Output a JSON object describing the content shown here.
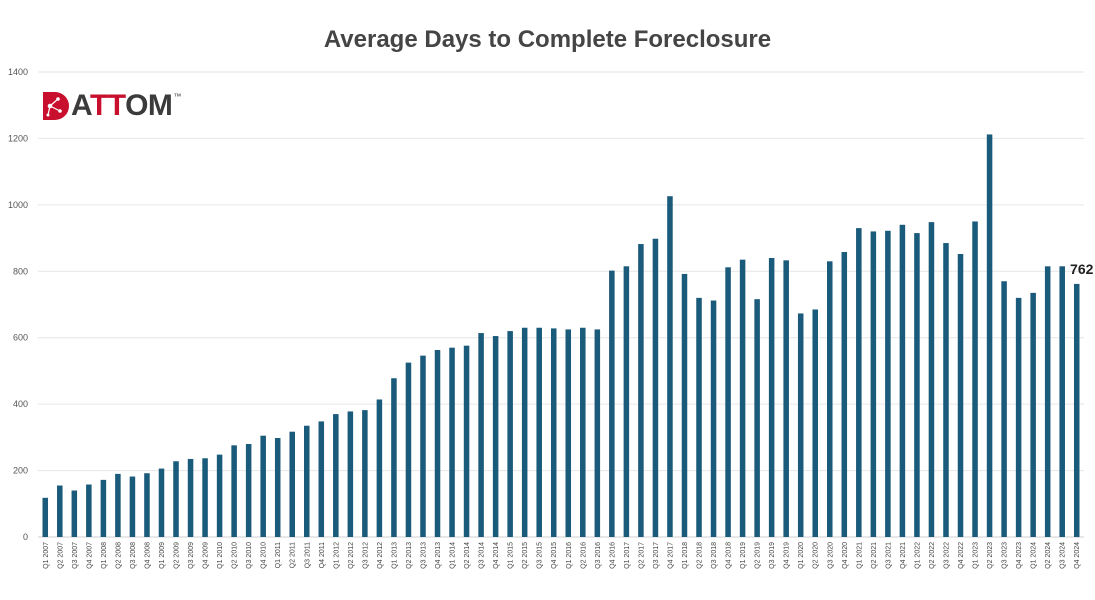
{
  "chart_data": {
    "type": "bar",
    "title": "Average Days to Complete Foreclosure",
    "xlabel": "",
    "ylabel": "",
    "ylim": [
      0,
      1400
    ],
    "yticks": [
      0,
      200,
      400,
      600,
      800,
      1000,
      1200,
      1400
    ],
    "grid": true,
    "bar_color": "#1a5a7a",
    "categories": [
      "Q1 2007",
      "Q2 2007",
      "Q3 2007",
      "Q4 2007",
      "Q1 2008",
      "Q2 2008",
      "Q3 2008",
      "Q4 2008",
      "Q1 2009",
      "Q2 2009",
      "Q3 2009",
      "Q4 2009",
      "Q1 2010",
      "Q2 2010",
      "Q3 2010",
      "Q4 2010",
      "Q1 2011",
      "Q2 2011",
      "Q3 2011",
      "Q4 2011",
      "Q1 2012",
      "Q2 2012",
      "Q3 2012",
      "Q4 2012",
      "Q1 2013",
      "Q2 2013",
      "Q3 2013",
      "Q4 2013",
      "Q1 2014",
      "Q2 2014",
      "Q3 2014",
      "Q4 2014",
      "Q1 2015",
      "Q2 2015",
      "Q3 2015",
      "Q4 2015",
      "Q1 2016",
      "Q2 2016",
      "Q3 2016",
      "Q4 2016",
      "Q1 2017",
      "Q2 2017",
      "Q3 2017",
      "Q4 2017",
      "Q1 2018",
      "Q2 2018",
      "Q3 2018",
      "Q4 2018",
      "Q1 2019",
      "Q2 2019",
      "Q3 2019",
      "Q4 2019",
      "Q1 2020",
      "Q2 2020",
      "Q3 2020",
      "Q4 2020",
      "Q1 2021",
      "Q2 2021",
      "Q3 2021",
      "Q4 2021",
      "Q1 2022",
      "Q2 2022",
      "Q3 2022",
      "Q4 2022",
      "Q1 2023",
      "Q2 2023",
      "Q3 2023",
      "Q4 2023",
      "Q1 2024",
      "Q2 2024",
      "Q3 2024",
      "Q4 2024"
    ],
    "values": [
      118,
      155,
      140,
      158,
      172,
      190,
      182,
      192,
      206,
      228,
      235,
      237,
      248,
      276,
      280,
      305,
      298,
      317,
      335,
      348,
      370,
      378,
      382,
      414,
      478,
      525,
      546,
      563,
      570,
      576,
      614,
      605,
      620,
      630,
      630,
      628,
      625,
      630,
      625,
      802,
      815,
      882,
      898,
      1026,
      792,
      720,
      712,
      812,
      835,
      716,
      840,
      833,
      673,
      685,
      830,
      858,
      930,
      920,
      922,
      940,
      915,
      948,
      885,
      852,
      950,
      1212,
      770,
      720,
      735,
      815,
      815,
      762
    ],
    "annotations": [
      {
        "category": "Q4 2024",
        "text": "762"
      }
    ]
  },
  "logo": {
    "text_left": "A",
    "text_accent": "TT",
    "text_right": "OM",
    "tm": "™"
  }
}
